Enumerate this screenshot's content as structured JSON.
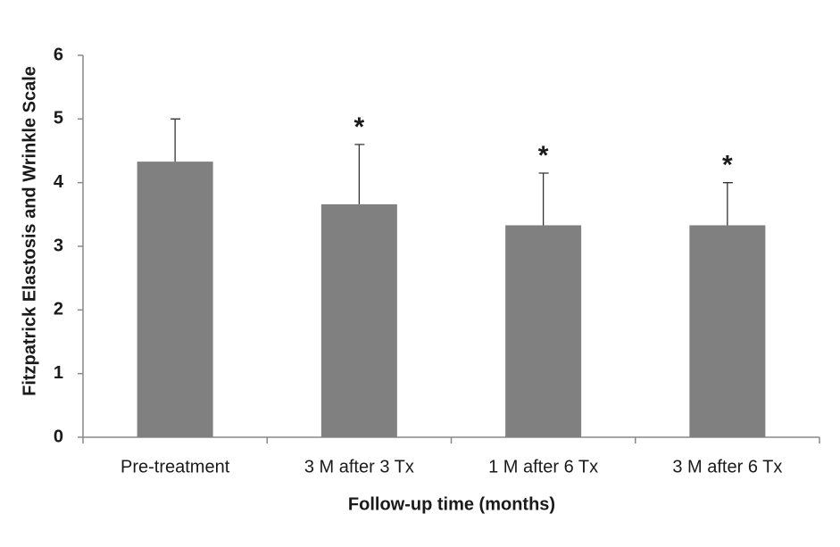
{
  "chart_data": {
    "type": "bar",
    "x_label": "Follow-up time (months)",
    "y_label": "Fitzpatrick Elastosis and Wrinkle Scale",
    "categories": [
      "Pre-treatment",
      "3 M after 3 Tx",
      "1 M after 6 Tx",
      "3 M after 6 Tx"
    ],
    "values": [
      4.33,
      3.66,
      3.33,
      3.33
    ],
    "errors": [
      0.67,
      0.94,
      0.82,
      0.67
    ],
    "significance": [
      null,
      "*",
      "*",
      "*"
    ],
    "color": "#808080",
    "ylim": [
      0,
      6
    ],
    "yticks": [
      0,
      1,
      2,
      3,
      4,
      5,
      6
    ],
    "grid": false
  }
}
